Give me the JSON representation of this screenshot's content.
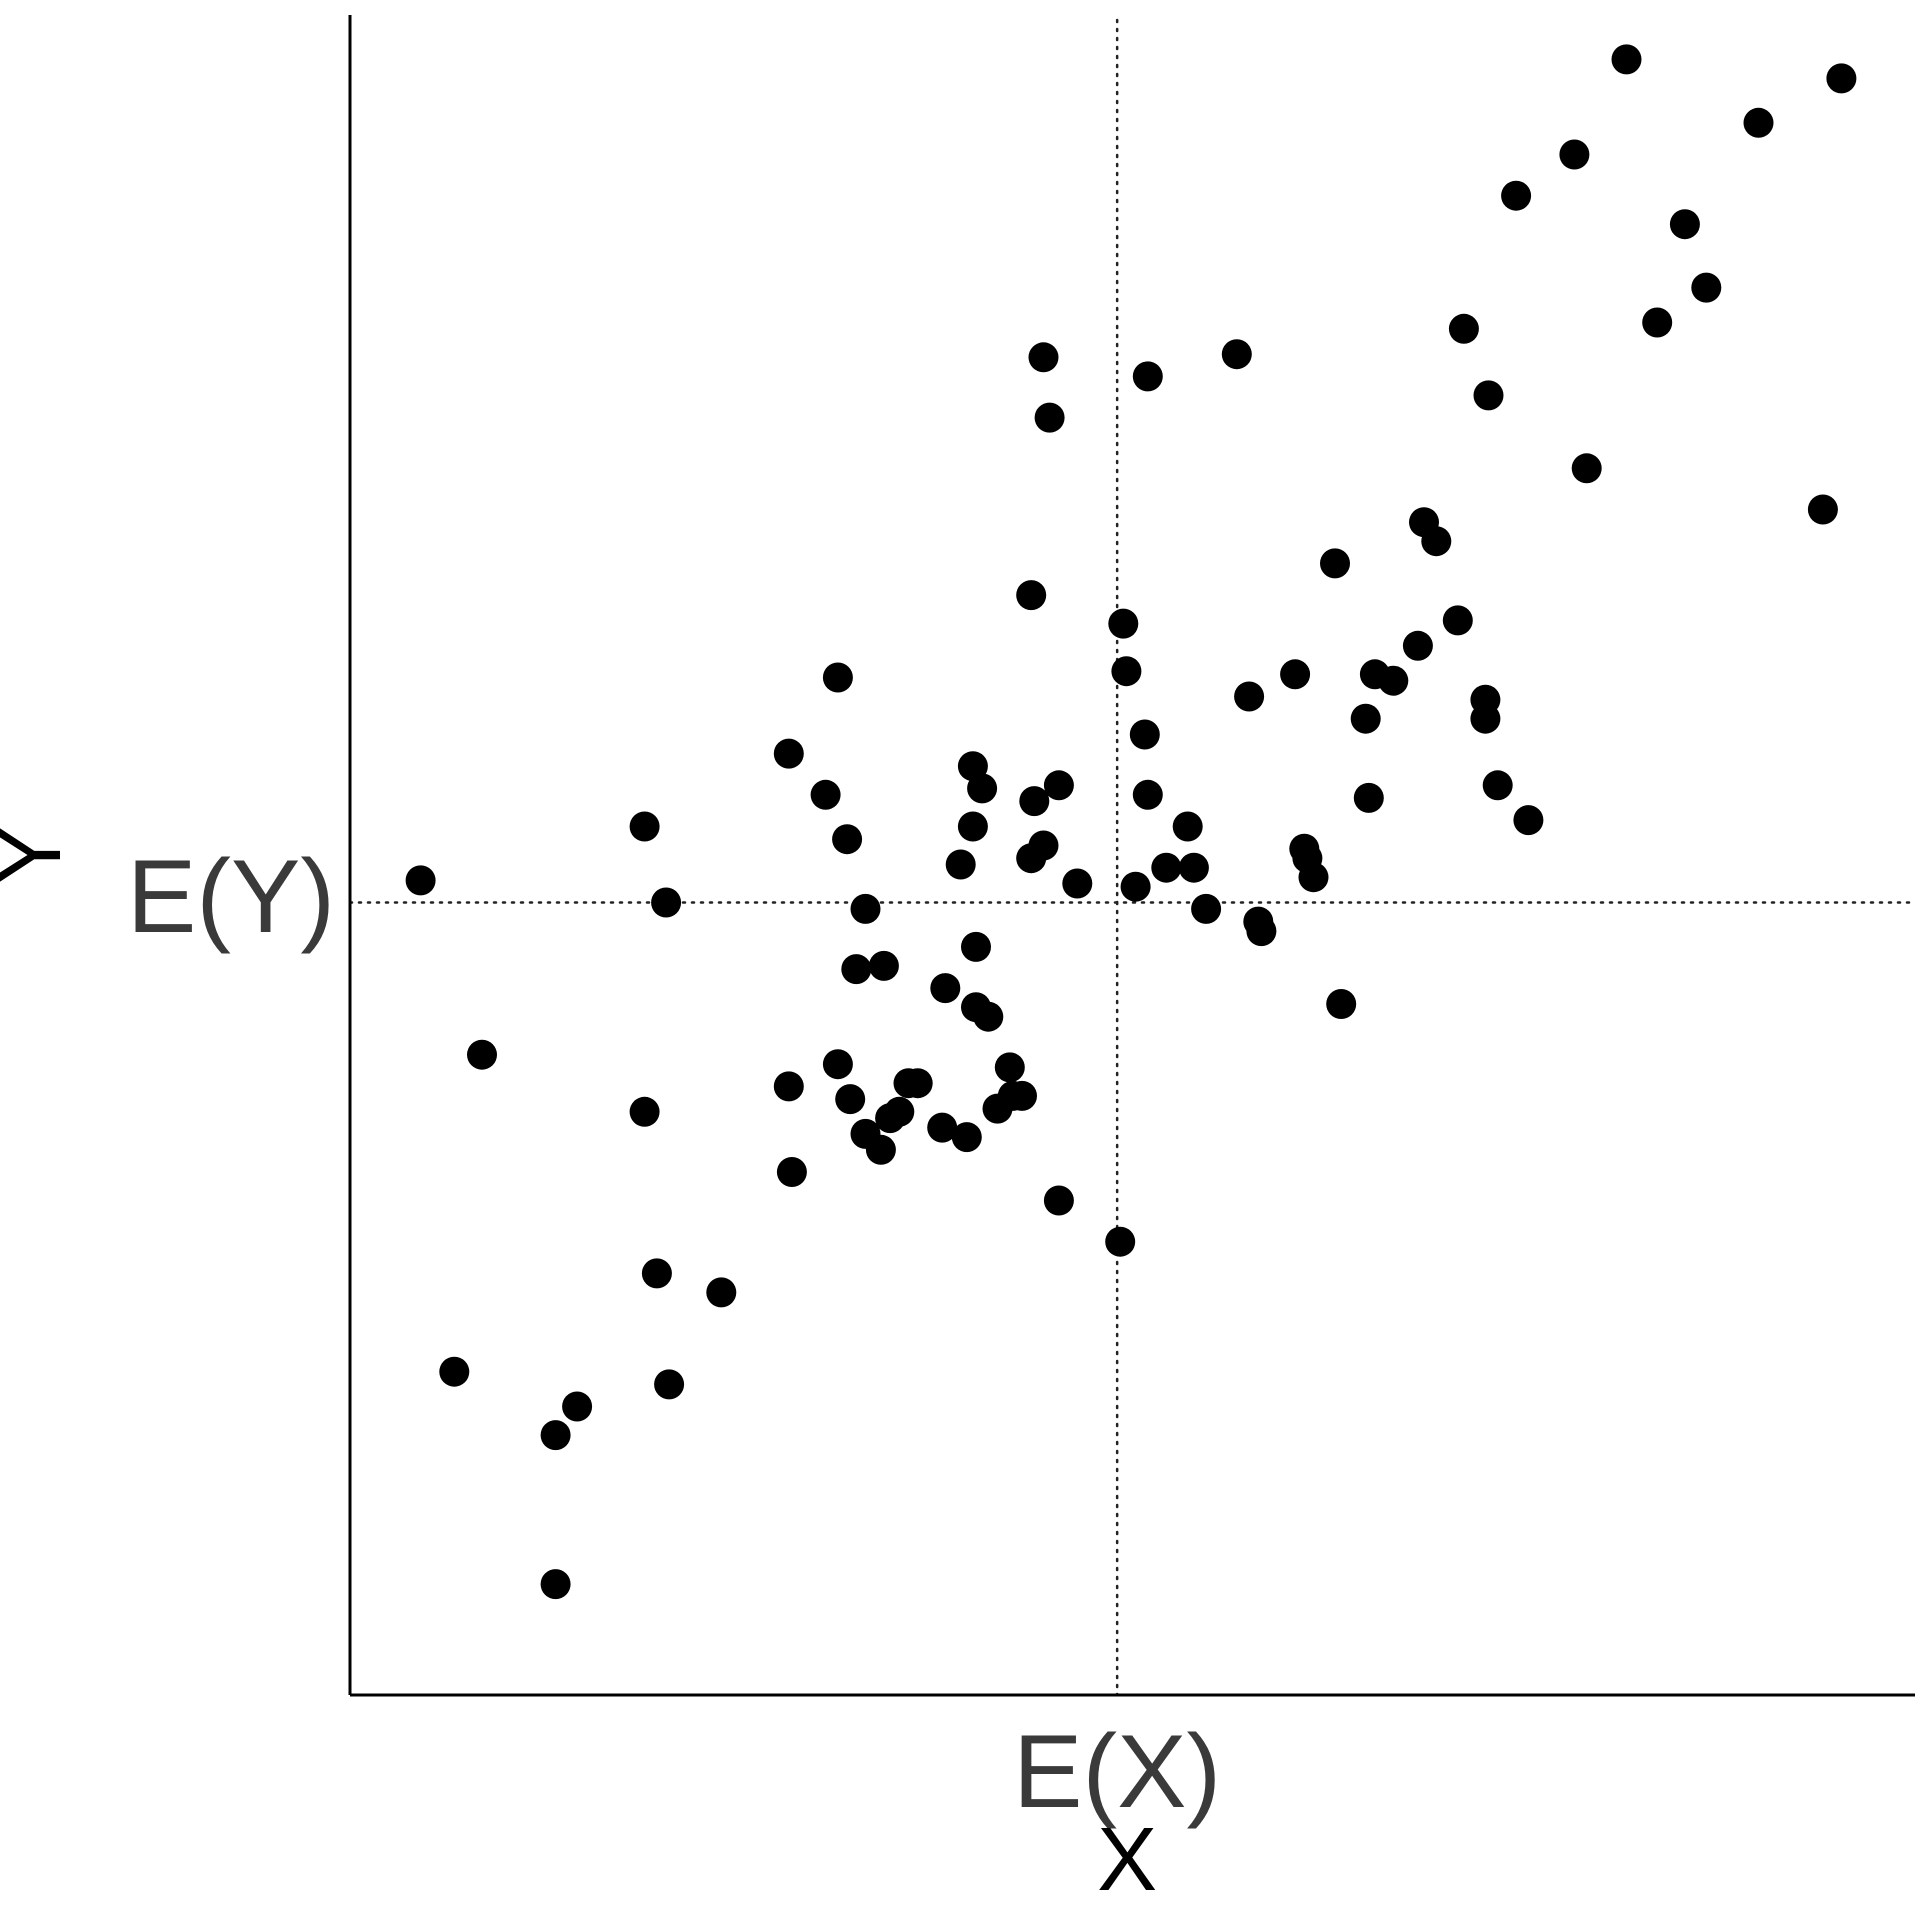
{
  "chart_data": {
    "type": "scatter",
    "title": "",
    "xlabel": "X",
    "ylabel": "Y",
    "x_ticks": [
      {
        "value": 0.0,
        "label": "E(X)"
      }
    ],
    "y_ticks": [
      {
        "value": 0.0,
        "label": "E(Y)"
      }
    ],
    "reference_lines": {
      "x": 0.0,
      "y": 0.0,
      "style": "dotted"
    },
    "xlim": [
      -2.5,
      2.6
    ],
    "ylim": [
      -2.5,
      2.8
    ],
    "grid": false,
    "legend": "none",
    "point_color": "#000000",
    "points": [
      [
        -2.27,
        0.07
      ],
      [
        -2.07,
        -0.48
      ],
      [
        -2.16,
        -1.48
      ],
      [
        -1.83,
        -1.68
      ],
      [
        -1.76,
        -1.59
      ],
      [
        -1.83,
        -2.15
      ],
      [
        -1.54,
        0.24
      ],
      [
        -1.47,
        0.0
      ],
      [
        -1.54,
        -0.66
      ],
      [
        -1.5,
        -1.17
      ],
      [
        -1.46,
        -1.52
      ],
      [
        -1.29,
        -1.23
      ],
      [
        -1.06,
        -0.85
      ],
      [
        -1.07,
        0.47
      ],
      [
        -0.91,
        0.71
      ],
      [
        -0.95,
        0.34
      ],
      [
        -0.88,
        0.2
      ],
      [
        -0.85,
        -0.21
      ],
      [
        -0.82,
        -0.02
      ],
      [
        -0.76,
        -0.2
      ],
      [
        -1.07,
        -0.58
      ],
      [
        -0.91,
        -0.51
      ],
      [
        -0.87,
        -0.62
      ],
      [
        -0.82,
        -0.73
      ],
      [
        -0.77,
        -0.78
      ],
      [
        -0.74,
        -0.68
      ],
      [
        -0.71,
        -0.66
      ],
      [
        -0.68,
        -0.57
      ],
      [
        -0.65,
        -0.57
      ],
      [
        -0.57,
        -0.71
      ],
      [
        -0.49,
        -0.74
      ],
      [
        -0.56,
        -0.27
      ],
      [
        -0.46,
        -0.33
      ],
      [
        -0.42,
        -0.36
      ],
      [
        -0.46,
        -0.14
      ],
      [
        -0.47,
        0.43
      ],
      [
        -0.47,
        0.24
      ],
      [
        -0.44,
        0.36
      ],
      [
        -0.51,
        0.12
      ],
      [
        -0.39,
        -0.65
      ],
      [
        -0.34,
        -0.61
      ],
      [
        -0.31,
        -0.61
      ],
      [
        -0.35,
        -0.52
      ],
      [
        -0.27,
        0.32
      ],
      [
        -0.24,
        0.18
      ],
      [
        -0.28,
        0.14
      ],
      [
        -0.13,
        0.06
      ],
      [
        -0.19,
        0.37
      ],
      [
        -0.28,
        0.97
      ],
      [
        -0.22,
        1.53
      ],
      [
        -0.24,
        1.72
      ],
      [
        -0.19,
        -0.94
      ],
      [
        0.01,
        -1.07
      ],
      [
        0.02,
        0.88
      ],
      [
        0.03,
        0.73
      ],
      [
        0.06,
        0.05
      ],
      [
        0.09,
        0.53
      ],
      [
        0.1,
        0.34
      ],
      [
        0.1,
        1.66
      ],
      [
        0.16,
        0.11
      ],
      [
        0.23,
        0.24
      ],
      [
        0.25,
        0.11
      ],
      [
        0.29,
        -0.02
      ],
      [
        0.39,
        1.73
      ],
      [
        0.46,
        -0.06
      ],
      [
        0.47,
        -0.09
      ],
      [
        0.43,
        0.65
      ],
      [
        0.58,
        0.72
      ],
      [
        0.61,
        0.17
      ],
      [
        0.62,
        0.14
      ],
      [
        0.64,
        0.08
      ],
      [
        0.71,
        1.07
      ],
      [
        0.73,
        -0.32
      ],
      [
        0.81,
        0.58
      ],
      [
        0.82,
        0.33
      ],
      [
        0.84,
        0.72
      ],
      [
        0.9,
        0.7
      ],
      [
        0.98,
        0.81
      ],
      [
        1.0,
        1.2
      ],
      [
        1.04,
        1.14
      ],
      [
        1.11,
        0.89
      ],
      [
        1.13,
        1.81
      ],
      [
        1.2,
        0.64
      ],
      [
        1.2,
        0.58
      ],
      [
        1.21,
        1.6
      ],
      [
        1.24,
        0.37
      ],
      [
        1.34,
        0.26
      ],
      [
        1.3,
        2.23
      ],
      [
        1.49,
        2.36
      ],
      [
        1.53,
        1.37
      ],
      [
        1.66,
        2.66
      ],
      [
        1.76,
        1.83
      ],
      [
        1.85,
        2.14
      ],
      [
        1.92,
        1.94
      ],
      [
        2.09,
        2.46
      ],
      [
        2.3,
        1.24
      ],
      [
        2.36,
        2.6
      ]
    ]
  }
}
